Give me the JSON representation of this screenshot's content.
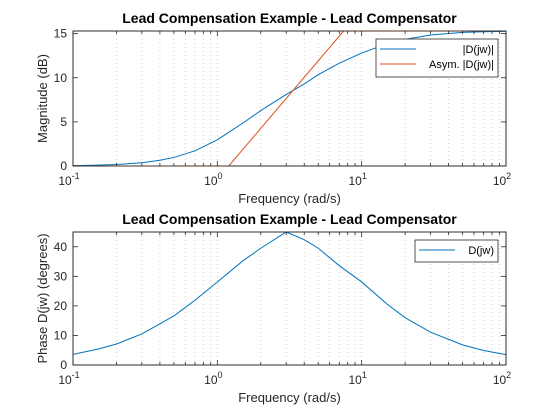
{
  "chart_data": [
    {
      "type": "line",
      "title": "Lead Compensation Example - Lead Compensator",
      "xlabel": "Frequency (rad/s)",
      "ylabel": "Magnitude (dB)",
      "xscale": "log",
      "xlim": [
        0.1,
        100
      ],
      "ylim": [
        0,
        15.3
      ],
      "xticks": [
        0.1,
        1,
        10,
        100
      ],
      "xtick_labels": [
        {
          "base": "10",
          "exp": "-1"
        },
        {
          "base": "10",
          "exp": "0"
        },
        {
          "base": "10",
          "exp": "1"
        },
        {
          "base": "10",
          "exp": "2"
        }
      ],
      "yticks": [
        0,
        5,
        10,
        15
      ],
      "ytick_labels": [
        "0",
        "5",
        "10",
        "15"
      ],
      "grid": "x-only dotted (major and minor)",
      "legend_position": "top-right",
      "series": [
        {
          "name": "|D(jw)|",
          "color": "#0072BD",
          "x": [
            0.1,
            0.15,
            0.2,
            0.3,
            0.4,
            0.5,
            0.7,
            1,
            1.5,
            2,
            3,
            4,
            5,
            7,
            10,
            15,
            20,
            30,
            50,
            70,
            100
          ],
          "y": [
            0.04,
            0.1,
            0.17,
            0.37,
            0.65,
            0.97,
            1.72,
            2.97,
            4.86,
            6.28,
            8.11,
            9.3,
            10.35,
            11.65,
            12.8,
            13.85,
            14.35,
            14.85,
            15.15,
            15.21,
            15.26
          ]
        },
        {
          "name": "Asym. |D(jw)|",
          "color": "#D95319",
          "x": [
            0.1,
            1.2,
            7.5,
            100
          ],
          "y": [
            0,
            0,
            15.3,
            15.3
          ]
        }
      ]
    },
    {
      "type": "line",
      "title": "Lead Compensation Example - Lead Compensator",
      "xlabel": "Frequency (rad/s)",
      "ylabel": "Phase D(jw) (degrees)",
      "xscale": "log",
      "xlim": [
        0.1,
        100
      ],
      "ylim": [
        0,
        45
      ],
      "xticks": [
        0.1,
        1,
        10,
        100
      ],
      "xtick_labels": [
        {
          "base": "10",
          "exp": "-1"
        },
        {
          "base": "10",
          "exp": "0"
        },
        {
          "base": "10",
          "exp": "1"
        },
        {
          "base": "10",
          "exp": "2"
        }
      ],
      "yticks": [
        0,
        10,
        20,
        30,
        40
      ],
      "ytick_labels": [
        "0",
        "10",
        "20",
        "30",
        "40"
      ],
      "grid": "x-only dotted (major and minor)",
      "legend_position": "top-right",
      "series": [
        {
          "name": "D(jw)",
          "color": "#0072BD",
          "x": [
            0.1,
            0.15,
            0.2,
            0.3,
            0.5,
            0.7,
            1,
            1.5,
            2,
            3,
            4,
            5,
            7,
            10,
            15,
            20,
            30,
            50,
            70,
            100
          ],
          "y": [
            3.6,
            5.4,
            7.1,
            10.5,
            16.6,
            21.9,
            28.1,
            35.2,
            39.5,
            45.0,
            42.4,
            39.5,
            33.6,
            28.1,
            20.6,
            16.0,
            11.1,
            6.8,
            4.9,
            3.5
          ]
        }
      ]
    }
  ]
}
